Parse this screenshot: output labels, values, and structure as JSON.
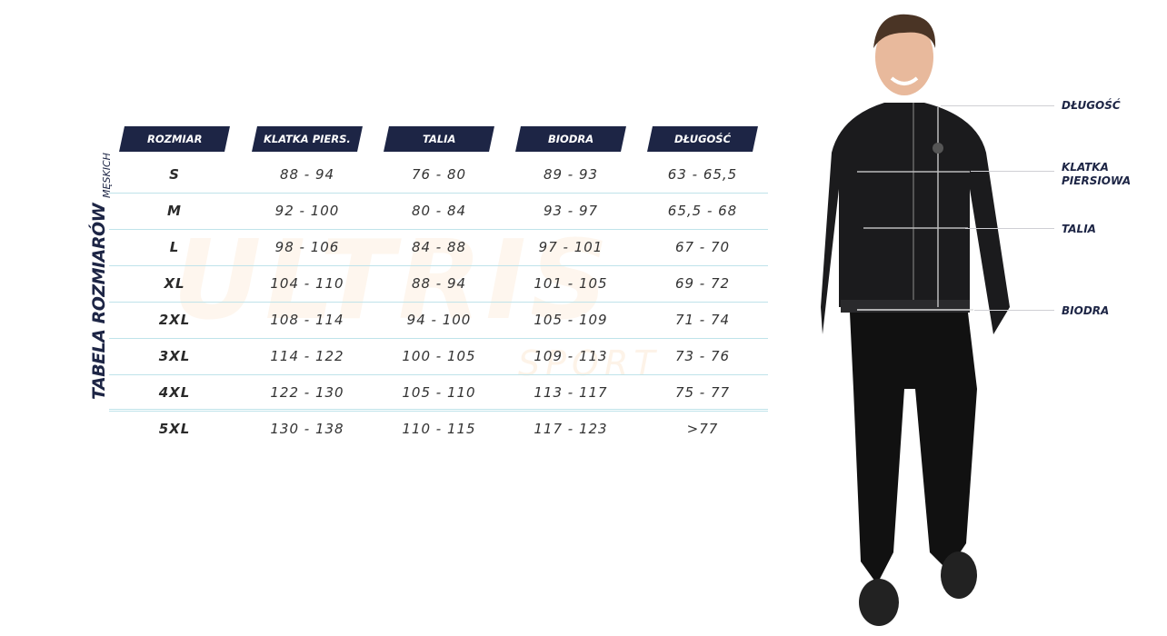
{
  "title": {
    "main": "TABELA ROZMIARÓW",
    "sub": "MĘSKICH"
  },
  "watermark": {
    "brand": "ULTRIS",
    "sub": "SPORT",
    "color": "#f6a04a"
  },
  "colors": {
    "header_bg": "#1d2545",
    "row_line": "#bfe3ea"
  },
  "table": {
    "headers": [
      "ROZMIAR",
      "KLATKA PIERS.",
      "TALIA",
      "BIODRA",
      "DŁUGOŚĆ"
    ],
    "rows": [
      [
        "S",
        "88 - 94",
        "76 - 80",
        "89 - 93",
        "63 - 65,5"
      ],
      [
        "M",
        "92 - 100",
        "80 - 84",
        "93 - 97",
        "65,5 - 68"
      ],
      [
        "L",
        "98 - 106",
        "84 - 88",
        "97 - 101",
        "67 - 70"
      ],
      [
        "XL",
        "104 - 110",
        "88 - 94",
        "101 - 105",
        "69 - 72"
      ],
      [
        "2XL",
        "108 - 114",
        "94 - 100",
        "105 - 109",
        "71 - 74"
      ],
      [
        "3XL",
        "114 - 122",
        "100 - 105",
        "109 - 113",
        "73 - 76"
      ],
      [
        "4XL",
        "122 - 130",
        "105 - 110",
        "113 - 117",
        "75 - 77"
      ],
      [
        "5XL",
        "130 - 138",
        "110 - 115",
        "117 - 123",
        ">77"
      ]
    ]
  },
  "figure_labels": {
    "length": "DŁUGOŚĆ",
    "chest_1": "KLATKA",
    "chest_2": "PIERSIOWA",
    "waist": "TALIA",
    "hips": "BIODRA"
  }
}
